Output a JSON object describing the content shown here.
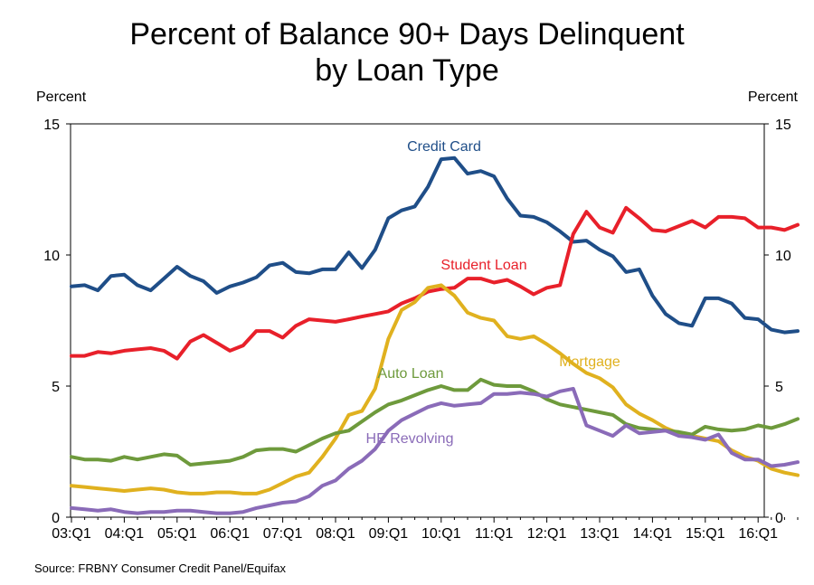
{
  "title_line1": "Percent of Balance 90+ Days Delinquent",
  "title_line2": "by Loan Type",
  "left_unit": "Percent",
  "right_unit": "Percent",
  "source": "Source: FRBNY Consumer Credit Panel/Equifax",
  "chart_data": {
    "type": "line",
    "title": "Percent of Balance 90+ Days Delinquent by Loan Type",
    "ylabel": "Percent",
    "ylim": [
      0,
      15
    ],
    "yticks": [
      0,
      5,
      10,
      15
    ],
    "xtick_labels": [
      "03:Q1",
      "04:Q1",
      "05:Q1",
      "06:Q1",
      "07:Q1",
      "08:Q1",
      "09:Q1",
      "10:Q1",
      "11:Q1",
      "12:Q1",
      "13:Q1",
      "14:Q1",
      "15:Q1",
      "16:Q1"
    ],
    "x": [
      "03:Q1",
      "03:Q2",
      "03:Q3",
      "03:Q4",
      "04:Q1",
      "04:Q2",
      "04:Q3",
      "04:Q4",
      "05:Q1",
      "05:Q2",
      "05:Q3",
      "05:Q4",
      "06:Q1",
      "06:Q2",
      "06:Q3",
      "06:Q4",
      "07:Q1",
      "07:Q2",
      "07:Q3",
      "07:Q4",
      "08:Q1",
      "08:Q2",
      "08:Q3",
      "08:Q4",
      "09:Q1",
      "09:Q2",
      "09:Q3",
      "09:Q4",
      "10:Q1",
      "10:Q2",
      "10:Q3",
      "10:Q4",
      "11:Q1",
      "11:Q2",
      "11:Q3",
      "11:Q4",
      "12:Q1",
      "12:Q2",
      "12:Q3",
      "12:Q4",
      "13:Q1",
      "13:Q2",
      "13:Q3",
      "13:Q4",
      "14:Q1",
      "14:Q2",
      "14:Q3",
      "14:Q4",
      "15:Q1",
      "15:Q2",
      "15:Q3",
      "15:Q4",
      "16:Q1",
      "16:Q2",
      "16:Q3",
      "16:Q4"
    ],
    "grid": false,
    "series": [
      {
        "name": "Credit Card",
        "color": "#1f4e88",
        "values": [
          8.8,
          8.85,
          8.65,
          9.2,
          9.25,
          8.85,
          8.65,
          9.1,
          9.55,
          9.2,
          9.0,
          8.55,
          8.8,
          8.95,
          9.15,
          9.6,
          9.7,
          9.35,
          9.3,
          9.45,
          9.45,
          10.1,
          9.5,
          10.2,
          11.4,
          11.7,
          11.85,
          12.6,
          13.65,
          13.7,
          13.1,
          13.2,
          13.0,
          12.15,
          11.5,
          11.45,
          11.25,
          10.9,
          10.5,
          10.55,
          10.2,
          9.95,
          9.35,
          9.45,
          8.45,
          7.75,
          7.4,
          7.3,
          8.35,
          8.35,
          8.15,
          7.6,
          7.55,
          7.15,
          7.05,
          7.1
        ]
      },
      {
        "name": "Student Loan",
        "color": "#e8202a",
        "values": [
          6.15,
          6.15,
          6.3,
          6.25,
          6.35,
          6.4,
          6.45,
          6.35,
          6.05,
          6.7,
          6.95,
          6.65,
          6.35,
          6.55,
          7.1,
          7.1,
          6.85,
          7.3,
          7.55,
          7.5,
          7.45,
          7.55,
          7.65,
          7.75,
          7.85,
          8.15,
          8.35,
          8.6,
          8.7,
          8.75,
          9.1,
          9.1,
          8.95,
          9.05,
          8.8,
          8.5,
          8.75,
          8.85,
          10.8,
          11.65,
          11.05,
          10.85,
          11.8,
          11.4,
          10.95,
          10.9,
          11.1,
          11.3,
          11.05,
          11.45,
          11.45,
          11.4,
          11.05,
          11.05,
          10.95,
          11.15
        ]
      },
      {
        "name": "Mortgage",
        "color": "#e0b11f",
        "values": [
          1.2,
          1.15,
          1.1,
          1.05,
          1.0,
          1.05,
          1.1,
          1.05,
          0.95,
          0.9,
          0.9,
          0.95,
          0.95,
          0.9,
          0.9,
          1.05,
          1.3,
          1.55,
          1.7,
          2.3,
          3.0,
          3.9,
          4.05,
          4.9,
          6.8,
          7.9,
          8.2,
          8.75,
          8.85,
          8.45,
          7.8,
          7.6,
          7.5,
          6.9,
          6.8,
          6.9,
          6.6,
          6.25,
          5.85,
          5.5,
          5.3,
          4.95,
          4.3,
          3.95,
          3.7,
          3.4,
          3.2,
          3.1,
          3.0,
          2.9,
          2.55,
          2.3,
          2.15,
          1.85,
          1.7,
          1.6
        ]
      },
      {
        "name": "Auto Loan",
        "color": "#6e9a3c",
        "values": [
          2.3,
          2.2,
          2.2,
          2.15,
          2.3,
          2.2,
          2.3,
          2.4,
          2.35,
          2.0,
          2.05,
          2.1,
          2.15,
          2.3,
          2.55,
          2.6,
          2.6,
          2.5,
          2.75,
          3.0,
          3.2,
          3.3,
          3.65,
          4.0,
          4.3,
          4.45,
          4.65,
          4.85,
          5.0,
          4.85,
          4.85,
          5.25,
          5.05,
          5.0,
          5.0,
          4.8,
          4.5,
          4.3,
          4.2,
          4.1,
          4.0,
          3.9,
          3.55,
          3.4,
          3.35,
          3.3,
          3.25,
          3.15,
          3.45,
          3.35,
          3.3,
          3.35,
          3.5,
          3.4,
          3.55,
          3.75
        ]
      },
      {
        "name": "HE Revolving",
        "color": "#8a6bb8",
        "values": [
          0.35,
          0.3,
          0.25,
          0.3,
          0.2,
          0.15,
          0.2,
          0.2,
          0.25,
          0.25,
          0.2,
          0.15,
          0.15,
          0.2,
          0.35,
          0.45,
          0.55,
          0.6,
          0.8,
          1.2,
          1.4,
          1.85,
          2.15,
          2.6,
          3.3,
          3.7,
          3.95,
          4.2,
          4.35,
          4.25,
          4.3,
          4.35,
          4.7,
          4.7,
          4.75,
          4.7,
          4.6,
          4.8,
          4.9,
          3.5,
          3.3,
          3.1,
          3.5,
          3.2,
          3.25,
          3.3,
          3.1,
          3.05,
          2.95,
          3.15,
          2.45,
          2.2,
          2.2,
          1.95,
          2.0,
          2.1
        ]
      }
    ]
  }
}
